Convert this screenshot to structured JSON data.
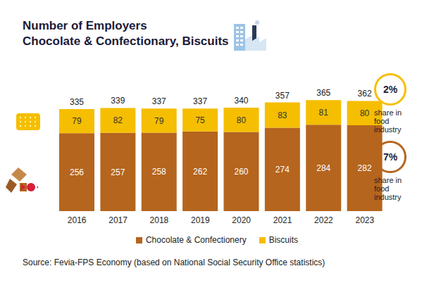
{
  "chart_data": {
    "type": "bar",
    "title": "Number of Employers",
    "subtitle": "Chocolate & Confectionary, Biscuits",
    "categories": [
      "2016",
      "2017",
      "2018",
      "2019",
      "2020",
      "2021",
      "2022",
      "2023"
    ],
    "series": [
      {
        "name": "Chocolate & Confectionery",
        "color": "#b5651d",
        "values": [
          256,
          257,
          258,
          262,
          260,
          274,
          284,
          282
        ],
        "share": 7,
        "share_label": "7%"
      },
      {
        "name": "Biscuits",
        "color": "#f5be00",
        "values": [
          79,
          82,
          79,
          75,
          80,
          83,
          81,
          80
        ],
        "share": 2,
        "share_label": "2%"
      }
    ],
    "totals": [
      335,
      339,
      337,
      337,
      340,
      357,
      365,
      362
    ],
    "share_text": "share in food industry",
    "stacked": true,
    "data_labels": true,
    "tick_labels": "x",
    "legend": "bottom",
    "ylim": [
      0,
      400
    ],
    "source": "Source: Fevia-FPS Economy (based on National Social Security Office statistics)"
  }
}
